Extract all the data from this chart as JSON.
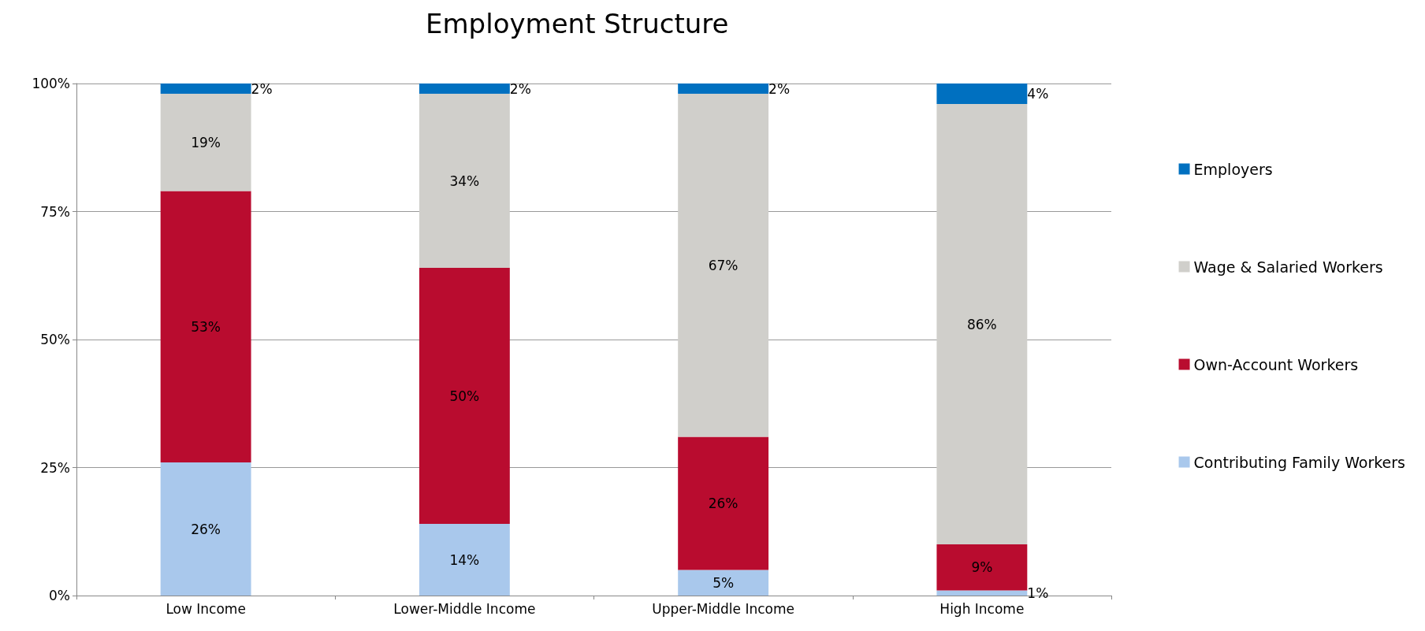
{
  "chart_data": {
    "type": "bar",
    "title": "Employment Structure",
    "stacked": true,
    "categories": [
      "Low Income",
      "Lower-Middle Income",
      "Upper-Middle Income",
      "High Income"
    ],
    "series": [
      {
        "name": "Contributing Family Workers",
        "color": "#a9c8ec",
        "values": [
          26,
          14,
          5,
          1
        ],
        "value_labels": [
          "26%",
          "14%",
          "5%",
          "1%"
        ]
      },
      {
        "name": "Own-Account Workers",
        "color": "#b90c2f",
        "values": [
          53,
          50,
          26,
          9
        ],
        "value_labels": [
          "53%",
          "50%",
          "26%",
          "9%"
        ]
      },
      {
        "name": "Wage & Salaried Workers",
        "color": "#d0cfcb",
        "values": [
          19,
          34,
          67,
          86
        ],
        "value_labels": [
          "19%",
          "34%",
          "67%",
          "86%"
        ]
      },
      {
        "name": "Employers",
        "color": "#0070c0",
        "values": [
          2,
          2,
          2,
          4
        ],
        "value_labels": [
          "2%",
          "2%",
          "2%",
          "4%"
        ]
      }
    ],
    "ylim": [
      0,
      100
    ],
    "yticks": [
      {
        "value": 0,
        "label": "0%"
      },
      {
        "value": 25,
        "label": "25%"
      },
      {
        "value": 50,
        "label": "50%"
      },
      {
        "value": 75,
        "label": "75%"
      },
      {
        "value": 100,
        "label": "100%"
      }
    ],
    "grid": "y",
    "legend": "right"
  }
}
